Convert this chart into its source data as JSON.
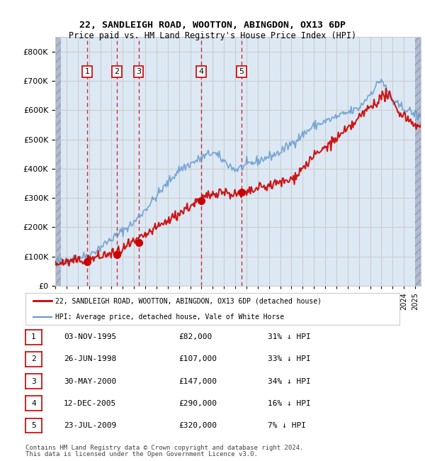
{
  "title1": "22, SANDLEIGH ROAD, WOOTTON, ABINGDON, OX13 6DP",
  "title2": "Price paid vs. HM Land Registry's House Price Index (HPI)",
  "ylabel": "",
  "background_color": "#dce9f5",
  "hatch_color": "#c0c8d8",
  "purchases": [
    {
      "num": 1,
      "date": "1995-11-03",
      "price": 82000,
      "label": "03-NOV-1995",
      "pct": "31% ↓ HPI"
    },
    {
      "num": 2,
      "date": "1998-06-26",
      "price": 107000,
      "label": "26-JUN-1998",
      "pct": "33% ↓ HPI"
    },
    {
      "num": 3,
      "date": "2000-05-30",
      "price": 147000,
      "label": "30-MAY-2000",
      "pct": "34% ↓ HPI"
    },
    {
      "num": 4,
      "date": "2005-12-12",
      "price": 290000,
      "label": "12-DEC-2005",
      "pct": "16% ↓ HPI"
    },
    {
      "num": 5,
      "date": "2009-07-23",
      "price": 320000,
      "label": "23-JUL-2009",
      "pct": "7% ↓ HPI"
    }
  ],
  "legend_line1": "22, SANDLEIGH ROAD, WOOTTON, ABINGDON, OX13 6DP (detached house)",
  "legend_line2": "HPI: Average price, detached house, Vale of White Horse",
  "footer1": "Contains HM Land Registry data © Crown copyright and database right 2024.",
  "footer2": "This data is licensed under the Open Government Licence v3.0.",
  "red_color": "#cc0000",
  "blue_color": "#6699cc",
  "ylim_max": 850000,
  "x_start_year": 1993,
  "x_end_year": 2025
}
